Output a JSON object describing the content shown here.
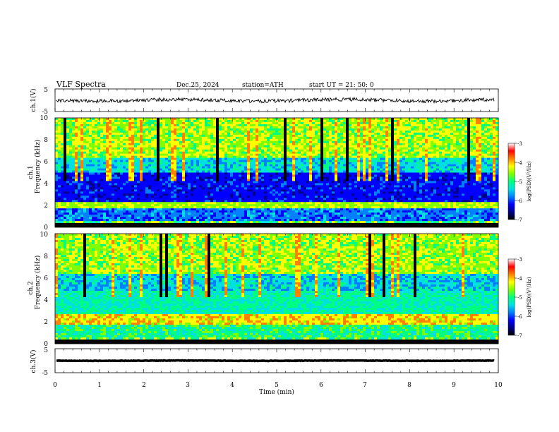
{
  "header": {
    "title": "VLF  Spectra",
    "date": "Dec.25, 2024",
    "station": "station=ATH",
    "start": "start  UT  =   21: 50: 0"
  },
  "colors": {
    "colormap": [
      "#000000",
      "#00008b",
      "#0000ff",
      "#0080ff",
      "#00e0e0",
      "#00ff80",
      "#80ff00",
      "#ffff00",
      "#ff8000",
      "#ff0000",
      "#ffffff"
    ]
  },
  "chart_data": [
    {
      "type": "line",
      "panel": "ch1-waveform",
      "ylabel": "ch.1(V)",
      "ylim": [
        -5,
        5
      ],
      "yticks": [
        "5",
        "-5"
      ],
      "xlim": [
        0,
        10
      ]
    },
    {
      "type": "heatmap",
      "panel": "ch1-spectrogram",
      "ylabel": "Frequency  (kHz)",
      "ylabel_prefix": "ch.1",
      "ylim": [
        0,
        10
      ],
      "yticks": [
        "0",
        "2",
        "4",
        "6",
        "8",
        "10"
      ],
      "xlim": [
        0,
        10
      ],
      "colorbar": {
        "label": "log(PSD)(V²/Hz)",
        "range": [
          -7,
          -3
        ],
        "ticks": [
          "-3",
          "-4",
          "-5",
          "-6",
          "-7"
        ]
      }
    },
    {
      "type": "heatmap",
      "panel": "ch2-spectrogram",
      "ylabel": "Frequency  (kHz)",
      "ylabel_prefix": "ch.2",
      "ylim": [
        0,
        10
      ],
      "yticks": [
        "0",
        "2",
        "4",
        "6",
        "8",
        "10"
      ],
      "xlim": [
        0,
        10
      ],
      "colorbar": {
        "label": "log(PSD)(V²/Hz)",
        "range": [
          -7,
          -3
        ],
        "ticks": [
          "-3",
          "-4",
          "-5",
          "-6",
          "-7"
        ]
      }
    },
    {
      "type": "line",
      "panel": "ch3-waveform",
      "ylabel": "ch.3(V)",
      "ylim": [
        -5,
        5
      ],
      "yticks": [
        "5",
        "-5"
      ],
      "xlim": [
        0,
        10
      ],
      "xlabel": "Time  (min)",
      "xticks": [
        "0",
        "1",
        "2",
        "3",
        "4",
        "5",
        "6",
        "7",
        "8",
        "9",
        "10"
      ]
    }
  ]
}
